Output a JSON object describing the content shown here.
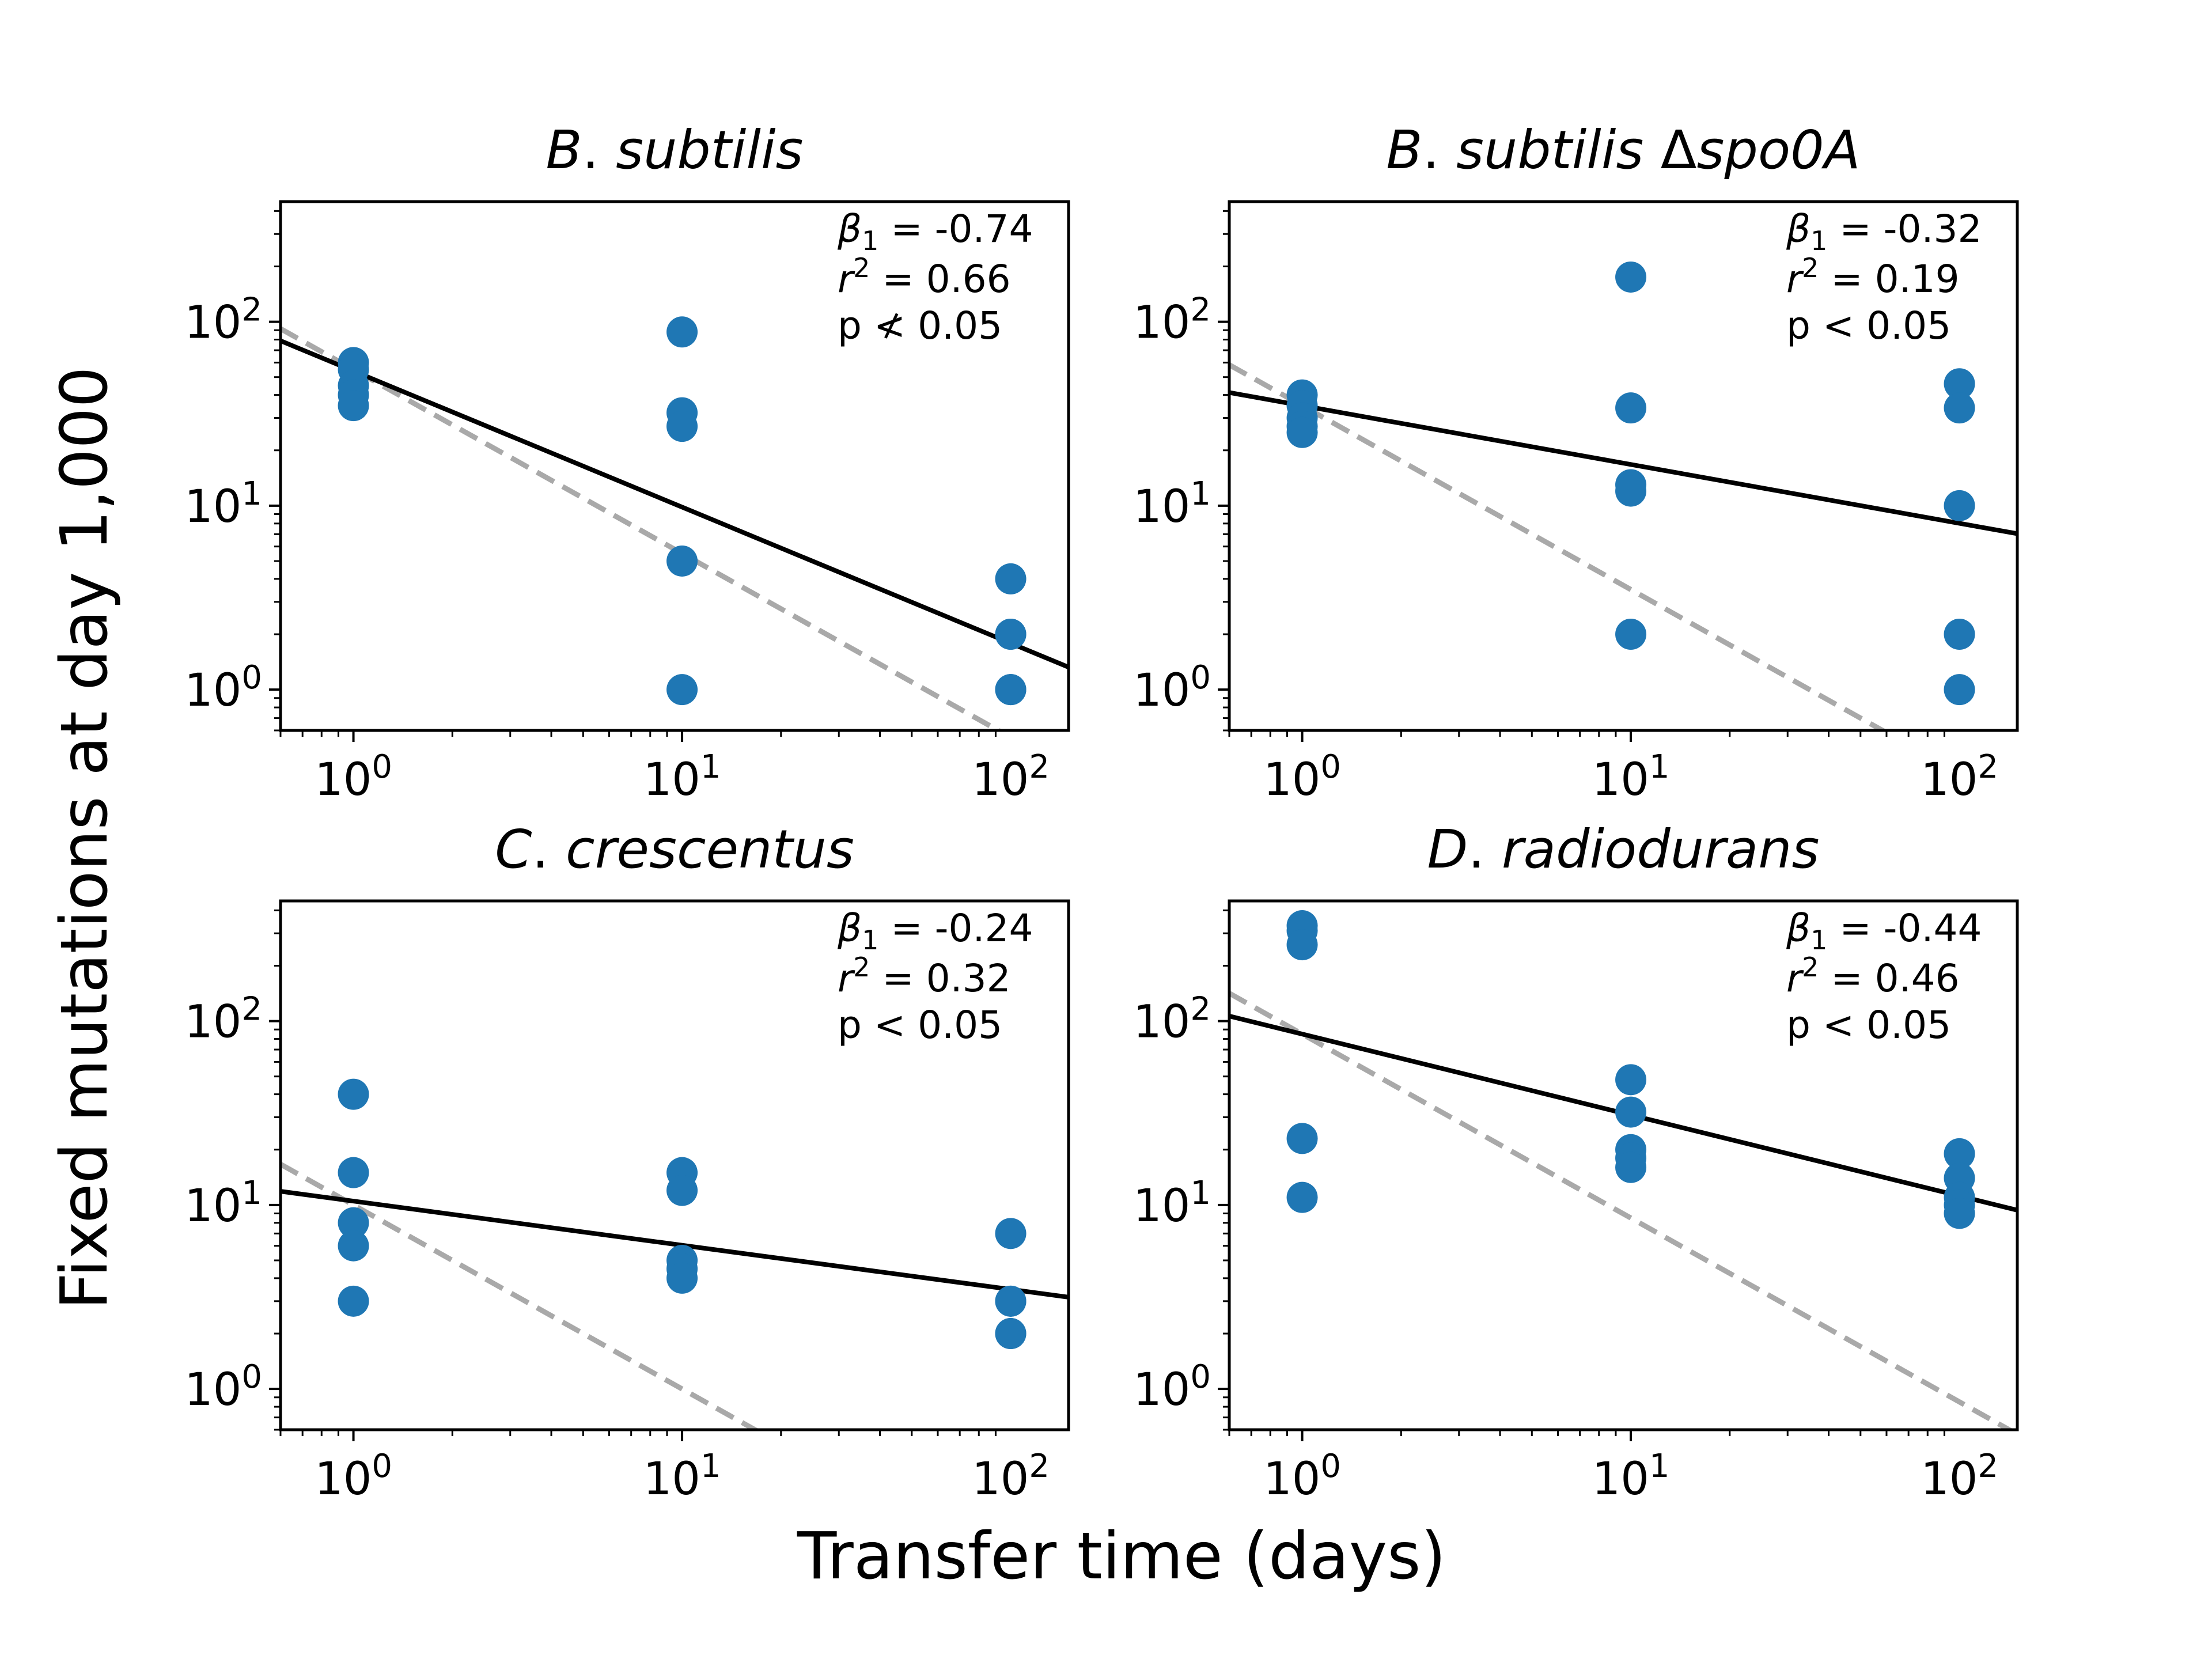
{
  "figure": {
    "xlabel": "Transfer time (days)",
    "ylabel": "Fixed mutations at day 1,000"
  },
  "colors": {
    "points": "#1f77b4",
    "fit_line": "#000000",
    "reference_line": "#a9a9a9"
  },
  "chart_data": [
    {
      "type": "scatter",
      "title": "B. subtilis",
      "title_parts": [
        {
          "text": "B",
          "italic": true
        },
        {
          "text": ". ",
          "italic": false
        },
        {
          "text": "subtilis",
          "italic": true
        }
      ],
      "x_scale": "log",
      "y_scale": "log",
      "xlim": [
        0.6,
        150
      ],
      "ylim": [
        0.6,
        450
      ],
      "x_ticks": [
        1,
        10,
        100
      ],
      "y_ticks": [
        1,
        10,
        100
      ],
      "points": [
        {
          "x": 1,
          "y": 60
        },
        {
          "x": 1,
          "y": 55
        },
        {
          "x": 1,
          "y": 45
        },
        {
          "x": 1,
          "y": 40
        },
        {
          "x": 1,
          "y": 35
        },
        {
          "x": 10,
          "y": 88
        },
        {
          "x": 10,
          "y": 32
        },
        {
          "x": 10,
          "y": 27
        },
        {
          "x": 10,
          "y": 5
        },
        {
          "x": 10,
          "y": 1
        },
        {
          "x": 100,
          "y": 4
        },
        {
          "x": 100,
          "y": 2
        },
        {
          "x": 100,
          "y": 2
        },
        {
          "x": 100,
          "y": 1
        },
        {
          "x": 100,
          "y": 1
        }
      ],
      "fit_line": {
        "slope": -0.74,
        "y_at_x1": 54
      },
      "reference_line": {
        "slope": -1,
        "y_at_x1": 55
      },
      "stats": {
        "beta_label": "β",
        "beta_sub": "1",
        "beta": "= -0.74",
        "r2_label": "r",
        "r2_sup": "2",
        "r2": "= 0.66",
        "p": "p ≮ 0.05"
      }
    },
    {
      "type": "scatter",
      "title": "B. subtilis Δspo0A",
      "title_parts": [
        {
          "text": "B",
          "italic": true
        },
        {
          "text": ". ",
          "italic": false
        },
        {
          "text": "subtilis ",
          "italic": true
        },
        {
          "text": "Δ",
          "italic": false
        },
        {
          "text": "spo0A",
          "italic": true
        }
      ],
      "x_scale": "log",
      "y_scale": "log",
      "xlim": [
        0.6,
        150
      ],
      "ylim": [
        0.6,
        450
      ],
      "x_ticks": [
        1,
        10,
        100
      ],
      "y_ticks": [
        1,
        10,
        100
      ],
      "points": [
        {
          "x": 1,
          "y": 40
        },
        {
          "x": 1,
          "y": 35
        },
        {
          "x": 1,
          "y": 30
        },
        {
          "x": 1,
          "y": 27
        },
        {
          "x": 1,
          "y": 25
        },
        {
          "x": 10,
          "y": 175
        },
        {
          "x": 10,
          "y": 34
        },
        {
          "x": 10,
          "y": 13
        },
        {
          "x": 10,
          "y": 12
        },
        {
          "x": 10,
          "y": 2
        },
        {
          "x": 100,
          "y": 46
        },
        {
          "x": 100,
          "y": 34
        },
        {
          "x": 100,
          "y": 10
        },
        {
          "x": 100,
          "y": 2
        },
        {
          "x": 100,
          "y": 1
        }
      ],
      "fit_line": {
        "slope": -0.32,
        "y_at_x1": 35
      },
      "reference_line": {
        "slope": -1,
        "y_at_x1": 35
      },
      "stats": {
        "beta_label": "β",
        "beta_sub": "1",
        "beta": "= -0.32",
        "r2_label": "r",
        "r2_sup": "2",
        "r2": "= 0.19",
        "p": "p < 0.05"
      }
    },
    {
      "type": "scatter",
      "title": "C. crescentus",
      "title_parts": [
        {
          "text": "C",
          "italic": true
        },
        {
          "text": ". ",
          "italic": false
        },
        {
          "text": "crescentus",
          "italic": true
        }
      ],
      "x_scale": "log",
      "y_scale": "log",
      "xlim": [
        0.6,
        150
      ],
      "ylim": [
        0.6,
        450
      ],
      "x_ticks": [
        1,
        10,
        100
      ],
      "y_ticks": [
        1,
        10,
        100
      ],
      "points": [
        {
          "x": 1,
          "y": 40
        },
        {
          "x": 1,
          "y": 15
        },
        {
          "x": 1,
          "y": 8
        },
        {
          "x": 1,
          "y": 6
        },
        {
          "x": 1,
          "y": 3
        },
        {
          "x": 10,
          "y": 15
        },
        {
          "x": 10,
          "y": 12
        },
        {
          "x": 10,
          "y": 5
        },
        {
          "x": 10,
          "y": 4.5
        },
        {
          "x": 10,
          "y": 4
        },
        {
          "x": 100,
          "y": 7
        },
        {
          "x": 100,
          "y": 3
        },
        {
          "x": 100,
          "y": 3
        },
        {
          "x": 100,
          "y": 2
        },
        {
          "x": 100,
          "y": 2
        }
      ],
      "fit_line": {
        "slope": -0.24,
        "y_at_x1": 10.5
      },
      "reference_line": {
        "slope": -1,
        "y_at_x1": 10
      },
      "stats": {
        "beta_label": "β",
        "beta_sub": "1",
        "beta": "= -0.24",
        "r2_label": "r",
        "r2_sup": "2",
        "r2": "= 0.32",
        "p": "p < 0.05"
      }
    },
    {
      "type": "scatter",
      "title": "D. radiodurans",
      "title_parts": [
        {
          "text": "D",
          "italic": true
        },
        {
          "text": ". ",
          "italic": false
        },
        {
          "text": "radiodurans",
          "italic": true
        }
      ],
      "x_scale": "log",
      "y_scale": "log",
      "xlim": [
        0.6,
        150
      ],
      "ylim": [
        0.6,
        450
      ],
      "x_ticks": [
        1,
        10,
        100
      ],
      "y_ticks": [
        1,
        10,
        100
      ],
      "points": [
        {
          "x": 1,
          "y": 330
        },
        {
          "x": 1,
          "y": 310
        },
        {
          "x": 1,
          "y": 260
        },
        {
          "x": 1,
          "y": 23
        },
        {
          "x": 1,
          "y": 11
        },
        {
          "x": 10,
          "y": 48
        },
        {
          "x": 10,
          "y": 32
        },
        {
          "x": 10,
          "y": 20
        },
        {
          "x": 10,
          "y": 18
        },
        {
          "x": 10,
          "y": 16
        },
        {
          "x": 100,
          "y": 19
        },
        {
          "x": 100,
          "y": 14
        },
        {
          "x": 100,
          "y": 11
        },
        {
          "x": 100,
          "y": 10
        },
        {
          "x": 100,
          "y": 9
        }
      ],
      "fit_line": {
        "slope": -0.44,
        "y_at_x1": 85
      },
      "reference_line": {
        "slope": -1,
        "y_at_x1": 85
      },
      "stats": {
        "beta_label": "β",
        "beta_sub": "1",
        "beta": "= -0.44",
        "r2_label": "r",
        "r2_sup": "2",
        "r2": "= 0.46",
        "p": "p < 0.05"
      }
    }
  ]
}
